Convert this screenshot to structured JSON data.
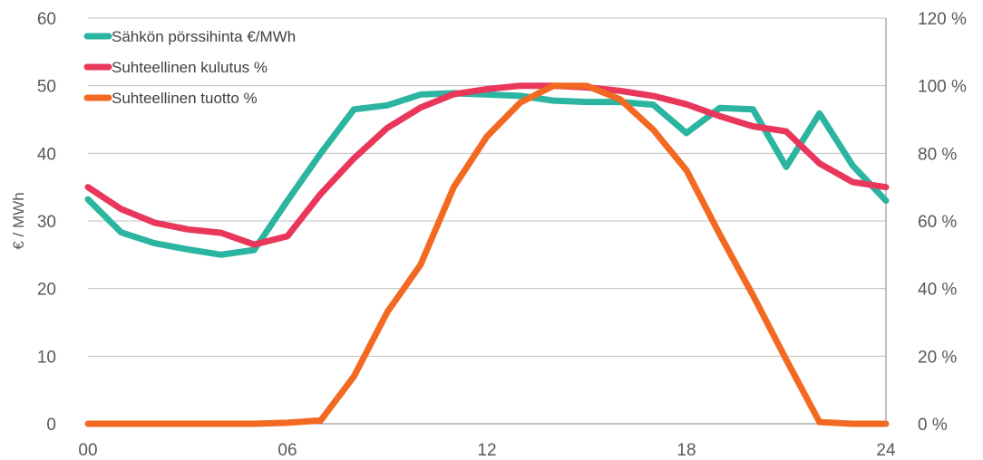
{
  "chart_data": {
    "type": "line",
    "title": "",
    "ylabel": "€ / MWh",
    "xlim": [
      0,
      24
    ],
    "ylim": [
      0,
      60
    ],
    "y2lim": [
      0,
      120
    ],
    "grid": true,
    "legend": "top-left",
    "x_ticks": [
      {
        "value": 0,
        "label": "00"
      },
      {
        "value": 6,
        "label": "06"
      },
      {
        "value": 12,
        "label": "12"
      },
      {
        "value": 18,
        "label": "18"
      },
      {
        "value": 24,
        "label": "24"
      }
    ],
    "y_ticks": [
      "0",
      "10",
      "20",
      "30",
      "40",
      "50",
      "60"
    ],
    "y2_ticks": [
      "0 %",
      "20 %",
      "40 %",
      "60 %",
      "80 %",
      "100 %",
      "120 %"
    ],
    "x": [
      0,
      1,
      2,
      3,
      4,
      5,
      6,
      7,
      8,
      9,
      10,
      11,
      12,
      13,
      14,
      15,
      16,
      17,
      18,
      19,
      20,
      21,
      22,
      23,
      24
    ],
    "series": [
      {
        "name": "Sähkön pörssihinta €/MWh",
        "axis": "left",
        "color": "#2bb5a0",
        "values": [
          33.2,
          28.3,
          26.7,
          25.8,
          25.0,
          25.7,
          33.0,
          40.0,
          46.5,
          47.1,
          48.7,
          48.9,
          48.7,
          48.5,
          47.8,
          47.6,
          47.6,
          47.2,
          43.0,
          46.7,
          46.5,
          38.0,
          45.9,
          38.2,
          33.0
        ]
      },
      {
        "name": "Suhteellinen kulutus %",
        "axis": "right",
        "color": "#e8375a",
        "values": [
          70.0,
          63.5,
          59.5,
          57.5,
          56.5,
          53.0,
          55.5,
          68.0,
          78.5,
          87.5,
          93.5,
          97.5,
          99.0,
          100.0,
          100.0,
          99.5,
          98.5,
          97.0,
          94.5,
          91.0,
          88.0,
          86.5,
          77.0,
          71.5,
          70.0
        ]
      },
      {
        "name": "Suhteellinen tuotto %",
        "axis": "right",
        "color": "#f26a21",
        "values": [
          0,
          0,
          0,
          0,
          0,
          0,
          0.3,
          1.0,
          14.0,
          33.0,
          47.0,
          70.0,
          85.0,
          95.0,
          100.0,
          100.0,
          96.0,
          87.0,
          75.0,
          56.0,
          38.0,
          19.0,
          0.5,
          0,
          0
        ]
      }
    ]
  }
}
